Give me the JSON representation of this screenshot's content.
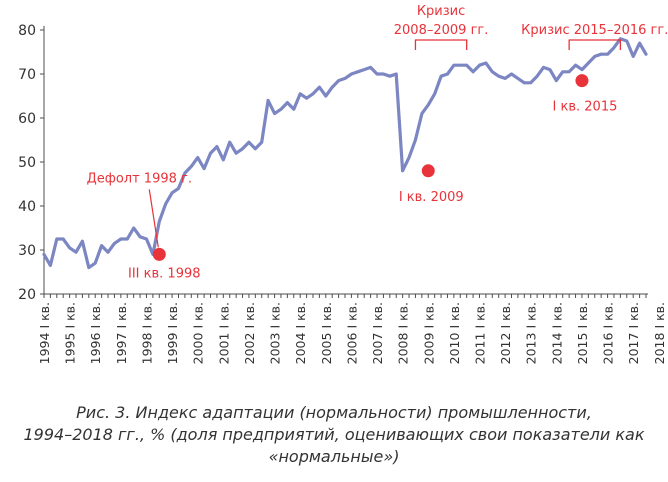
{
  "chart_data": {
    "type": "line",
    "ylim": [
      20,
      80
    ],
    "yticks": [
      20,
      30,
      40,
      50,
      60,
      70,
      80
    ],
    "x_tick_labels": [
      "1994 I кв.",
      "1995 I кв.",
      "1996 I кв.",
      "1997 I кв.",
      "1998 I кв.",
      "1999 I кв.",
      "2000 I кв.",
      "2001 I кв.",
      "2002 I кв.",
      "2003 I кв.",
      "2004 I кв.",
      "2005 I кв.",
      "2006 I кв.",
      "2007 I кв.",
      "2008 I кв.",
      "2009 I кв.",
      "2010 I кв.",
      "2011 I кв.",
      "2012 I кв.",
      "2013 I кв.",
      "2014 I кв.",
      "2015 I кв.",
      "2016 I кв.",
      "2017 I кв.",
      "2018 I кв."
    ],
    "x_start_year": 1994,
    "series": [
      {
        "color": "#7b86c2",
        "values": [
          29,
          26.5,
          32.5,
          32.5,
          30.5,
          29.5,
          32,
          26,
          27,
          31,
          29.5,
          31.5,
          32.5,
          32.5,
          35,
          33,
          32.5,
          29,
          36.5,
          40.5,
          43,
          44,
          47.5,
          49,
          51,
          48.5,
          52,
          53.5,
          50.5,
          54.5,
          52,
          53,
          54.5,
          53,
          54.5,
          64,
          61,
          62,
          63.5,
          62,
          65.5,
          64.5,
          65.5,
          67,
          65,
          67,
          68.5,
          69,
          70,
          70.5,
          71,
          71.5,
          70,
          70,
          69.5,
          70,
          48,
          51,
          55,
          61,
          63,
          65.5,
          69.5,
          70,
          72,
          72,
          72,
          70.5,
          72,
          72.5,
          70.5,
          69.5,
          69,
          70,
          69,
          68,
          68,
          69.5,
          71.5,
          71,
          68.5,
          70.5,
          70.5,
          72,
          71,
          72.5,
          74,
          74.5,
          74.5,
          76,
          78,
          77.5,
          74,
          77,
          74.5
        ]
      }
    ],
    "markers": [
      {
        "label": "Дефолт 1998 г.",
        "sublabel": "III кв. 1998",
        "year": 1998,
        "quarter": 3,
        "value": 29
      },
      {
        "label": "",
        "sublabel": "I кв. 2009",
        "year": 2009,
        "quarter": 1,
        "value": 48
      },
      {
        "label": "",
        "sublabel": "I кв. 2015",
        "year": 2015,
        "quarter": 1,
        "value": 68.5
      }
    ],
    "crisis_brackets": [
      {
        "label_lines": [
          "Кризис",
          "2008–2009 гг."
        ],
        "from_year": 2008.5,
        "to_year": 2010.5
      },
      {
        "label_lines": [
          "Кризис 2015–2016 гг."
        ],
        "from_year": 2014.5,
        "to_year": 2016.5
      }
    ],
    "colors": {
      "line": "#7b86c2",
      "accent": "#e8333a",
      "axis": "#4d4d4d",
      "text": "#333333"
    }
  },
  "caption": {
    "line1": "Рис. 3. Индекс адаптации (нормальности) промышленности,",
    "line2": "1994–2018 гг., % (доля предприятий, оценивающих свои показатели как",
    "line3": "«нормальные»)"
  }
}
